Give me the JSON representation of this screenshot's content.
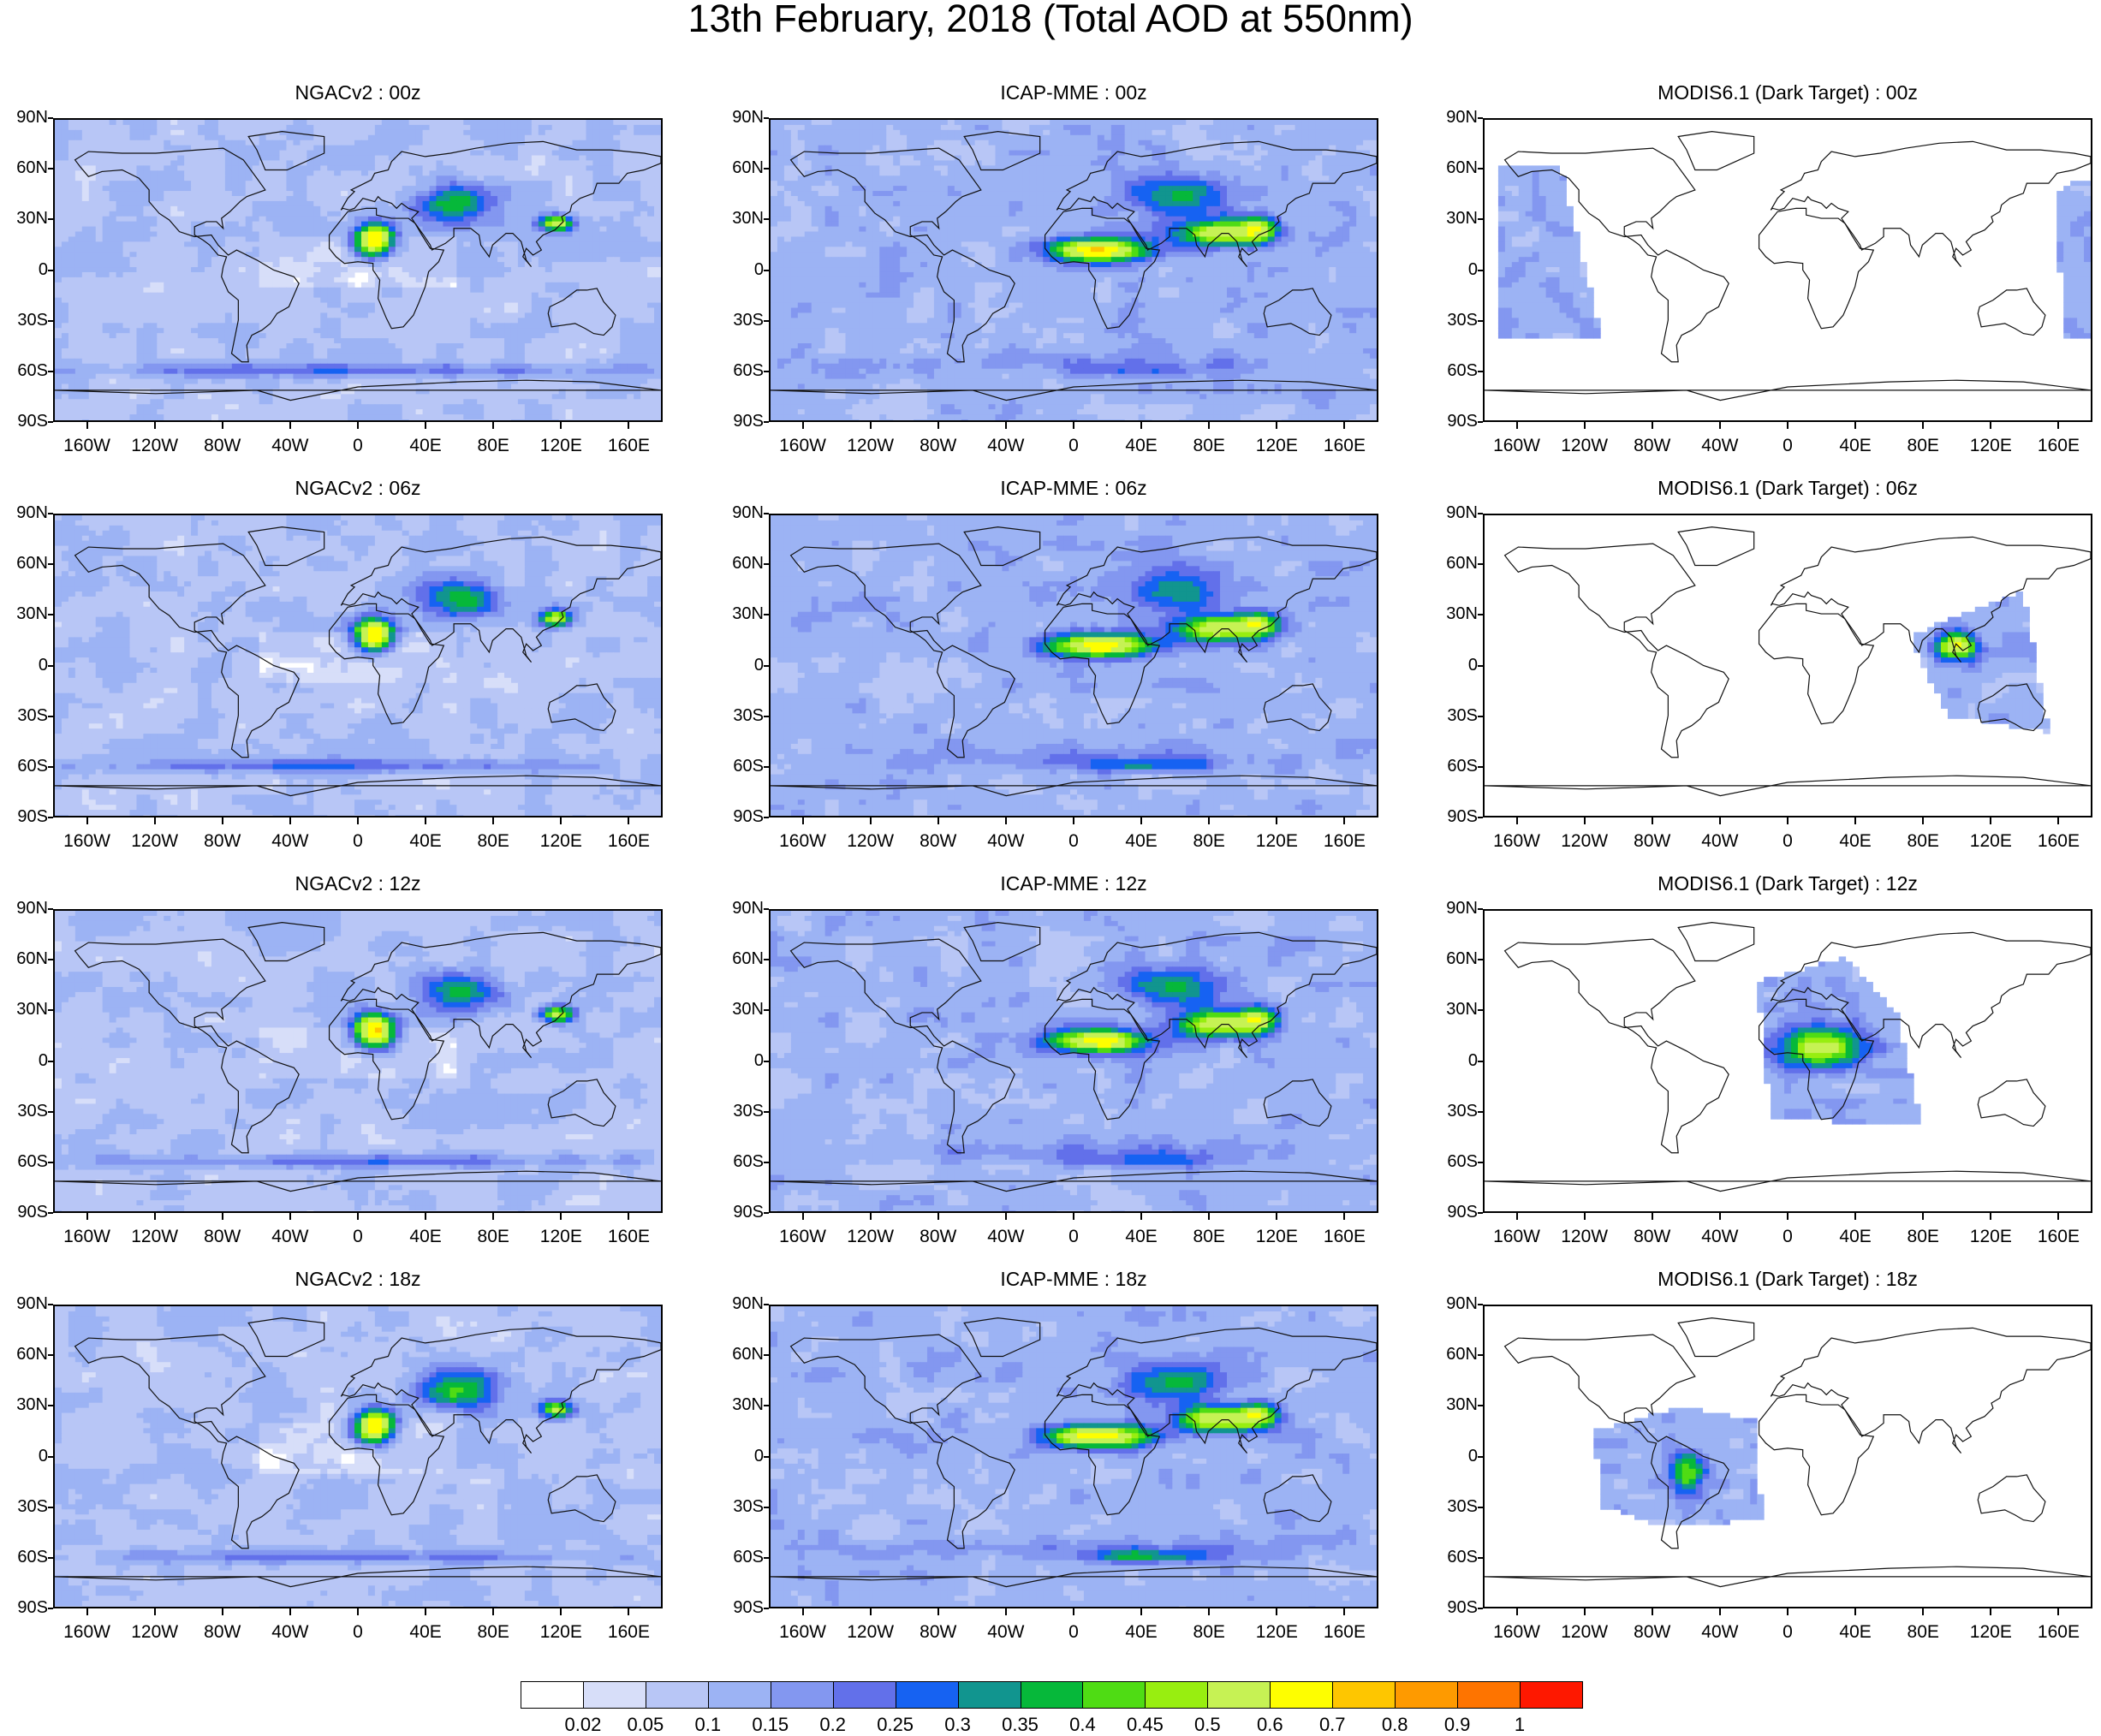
{
  "title": "13th February, 2018 (Total AOD at 550nm)",
  "panels": [
    {
      "title": "NGACv2 : 00z",
      "model": "ngac",
      "time": "00z"
    },
    {
      "title": "ICAP-MME : 00z",
      "model": "icap",
      "time": "00z"
    },
    {
      "title": "MODIS6.1 (Dark Target) : 00z",
      "model": "modis",
      "time": "00z",
      "swath": "[[-172,62],[-135,62],[-110,-42],[-172,-42]], [[158,45],[175,55],[180,52],[180,-40],[165,-40]]"
    },
    {
      "title": "NGACv2 : 06z",
      "model": "ngac",
      "time": "06z"
    },
    {
      "title": "ICAP-MME : 06z",
      "model": "icap",
      "time": "06z"
    },
    {
      "title": "MODIS6.1 (Dark Target) : 06z",
      "model": "modis",
      "time": "06z",
      "swath": "[[72,18],[140,45],[155,-40],[95,-30]]"
    },
    {
      "title": "NGACv2 : 12z",
      "model": "ngac",
      "time": "12z"
    },
    {
      "title": "ICAP-MME : 12z",
      "model": "icap",
      "time": "12z"
    },
    {
      "title": "MODIS6.1 (Dark Target) : 12z",
      "model": "modis",
      "time": "12z",
      "swath": "[[-18,48],[35,62],[65,28],[80,-38],[-10,-35]]"
    },
    {
      "title": "NGACv2 : 18z",
      "model": "ngac",
      "time": "18z"
    },
    {
      "title": "ICAP-MME : 18z",
      "model": "icap",
      "time": "18z"
    },
    {
      "title": "MODIS6.1 (Dark Target) : 18z",
      "model": "modis",
      "time": "18z",
      "swath": "[[-115,15],[-62,30],[-20,22],[-15,-38],[-75,-42],[-110,-30]]"
    }
  ],
  "lat_labels": [
    "90N",
    "60N",
    "30N",
    "0",
    "30S",
    "60S",
    "90S"
  ],
  "lon_labels": [
    "160W",
    "120W",
    "80W",
    "40W",
    "0",
    "40E",
    "80E",
    "120E",
    "160E"
  ],
  "colorbar": {
    "labels": [
      "0.02",
      "0.05",
      "0.1",
      "0.15",
      "0.2",
      "0.25",
      "0.3",
      "0.35",
      "0.4",
      "0.45",
      "0.5",
      "0.6",
      "0.7",
      "0.8",
      "0.9",
      "1"
    ],
    "colors": [
      "#ffffff",
      "#d7def9",
      "#b8c6f6",
      "#9cb3f4",
      "#8397f0",
      "#6270ea",
      "#1662f2",
      "#11958f",
      "#06b83a",
      "#4fdc14",
      "#98ee10",
      "#c6f254",
      "#fefe00",
      "#fec600",
      "#fe9a00",
      "#fe7400",
      "#fe1800"
    ]
  }
}
